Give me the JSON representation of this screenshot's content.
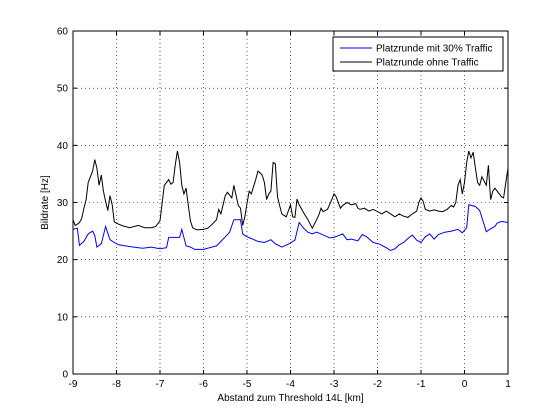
{
  "chart_data": {
    "type": "line",
    "xlabel": "Abstand zum Threshold 14L [km]",
    "ylabel": "Bildrate [Hz]",
    "xlim": [
      -9,
      1
    ],
    "ylim": [
      0,
      60
    ],
    "xticks": [
      -9,
      -8,
      -7,
      -6,
      -5,
      -4,
      -3,
      -2,
      -1,
      0,
      1
    ],
    "yticks": [
      0,
      10,
      20,
      30,
      40,
      50,
      60
    ],
    "grid": true,
    "legend_position": "top-right",
    "series": [
      {
        "name": "Platzrunde mit 30% Traffic",
        "color": "#0000ff",
        "points": [
          [
            -9.0,
            25.3
          ],
          [
            -8.9,
            25.5
          ],
          [
            -8.85,
            22.5
          ],
          [
            -8.75,
            23.2
          ],
          [
            -8.65,
            24.5
          ],
          [
            -8.55,
            25.0
          ],
          [
            -8.5,
            24.2
          ],
          [
            -8.45,
            22.2
          ],
          [
            -8.35,
            22.8
          ],
          [
            -8.25,
            25.8
          ],
          [
            -8.15,
            23.5
          ],
          [
            -8.05,
            23.0
          ],
          [
            -7.95,
            22.6
          ],
          [
            -7.8,
            22.4
          ],
          [
            -7.6,
            22.2
          ],
          [
            -7.4,
            22.0
          ],
          [
            -7.2,
            22.2
          ],
          [
            -7.0,
            21.9
          ],
          [
            -6.85,
            22.1
          ],
          [
            -6.8,
            23.9
          ],
          [
            -6.55,
            23.9
          ],
          [
            -6.5,
            25.3
          ],
          [
            -6.4,
            22.4
          ],
          [
            -6.3,
            22.2
          ],
          [
            -6.2,
            21.8
          ],
          [
            -6.0,
            21.8
          ],
          [
            -5.9,
            22.0
          ],
          [
            -5.7,
            22.4
          ],
          [
            -5.6,
            23.2
          ],
          [
            -5.5,
            24.0
          ],
          [
            -5.4,
            24.8
          ],
          [
            -5.3,
            27.0
          ],
          [
            -5.15,
            27.0
          ],
          [
            -5.1,
            24.5
          ],
          [
            -5.0,
            24.0
          ],
          [
            -4.9,
            23.7
          ],
          [
            -4.75,
            23.2
          ],
          [
            -4.6,
            23.0
          ],
          [
            -4.45,
            23.5
          ],
          [
            -4.35,
            22.8
          ],
          [
            -4.2,
            22.2
          ],
          [
            -4.05,
            22.7
          ],
          [
            -3.9,
            23.4
          ],
          [
            -3.8,
            26.5
          ],
          [
            -3.7,
            25.5
          ],
          [
            -3.6,
            24.8
          ],
          [
            -3.5,
            24.5
          ],
          [
            -3.4,
            24.8
          ],
          [
            -3.3,
            24.5
          ],
          [
            -3.1,
            23.8
          ],
          [
            -3.0,
            23.9
          ],
          [
            -2.9,
            24.2
          ],
          [
            -2.8,
            24.5
          ],
          [
            -2.7,
            23.5
          ],
          [
            -2.6,
            23.6
          ],
          [
            -2.45,
            23.3
          ],
          [
            -2.35,
            24.4
          ],
          [
            -2.25,
            24.0
          ],
          [
            -2.1,
            23.0
          ],
          [
            -1.95,
            22.7
          ],
          [
            -1.8,
            22.1
          ],
          [
            -1.7,
            21.6
          ],
          [
            -1.6,
            21.9
          ],
          [
            -1.5,
            22.6
          ],
          [
            -1.4,
            23.0
          ],
          [
            -1.3,
            23.7
          ],
          [
            -1.2,
            24.3
          ],
          [
            -1.1,
            23.4
          ],
          [
            -1.0,
            23.0
          ],
          [
            -0.9,
            24.0
          ],
          [
            -0.8,
            24.5
          ],
          [
            -0.7,
            23.6
          ],
          [
            -0.6,
            24.4
          ],
          [
            -0.45,
            24.8
          ],
          [
            -0.3,
            25.0
          ],
          [
            -0.15,
            25.3
          ],
          [
            -0.05,
            24.7
          ],
          [
            0.05,
            25.6
          ],
          [
            0.1,
            29.6
          ],
          [
            0.25,
            29.3
          ],
          [
            0.35,
            28.6
          ],
          [
            0.5,
            24.9
          ],
          [
            0.6,
            25.4
          ],
          [
            0.7,
            25.8
          ],
          [
            0.75,
            26.4
          ],
          [
            0.85,
            26.7
          ],
          [
            1.0,
            26.5
          ]
        ]
      },
      {
        "name": "Platzrunde ohne Traffic",
        "color": "#000000",
        "points": [
          [
            -9.0,
            27.0
          ],
          [
            -8.95,
            26.0
          ],
          [
            -8.9,
            26.2
          ],
          [
            -8.85,
            26.5
          ],
          [
            -8.8,
            27.2
          ],
          [
            -8.75,
            29.0
          ],
          [
            -8.7,
            30.5
          ],
          [
            -8.65,
            33.5
          ],
          [
            -8.6,
            34.5
          ],
          [
            -8.55,
            35.5
          ],
          [
            -8.5,
            37.5
          ],
          [
            -8.45,
            36.0
          ],
          [
            -8.4,
            33.0
          ],
          [
            -8.35,
            34.8
          ],
          [
            -8.3,
            32.0
          ],
          [
            -8.25,
            30.2
          ],
          [
            -8.2,
            28.6
          ],
          [
            -8.15,
            31.2
          ],
          [
            -8.1,
            29.6
          ],
          [
            -8.05,
            26.6
          ],
          [
            -7.95,
            26.2
          ],
          [
            -7.85,
            25.9
          ],
          [
            -7.7,
            25.6
          ],
          [
            -7.5,
            26.0
          ],
          [
            -7.35,
            25.6
          ],
          [
            -7.2,
            25.6
          ],
          [
            -7.1,
            25.8
          ],
          [
            -7.0,
            26.8
          ],
          [
            -6.95,
            30.0
          ],
          [
            -6.9,
            33.0
          ],
          [
            -6.8,
            34.0
          ],
          [
            -6.75,
            33.2
          ],
          [
            -6.7,
            33.5
          ],
          [
            -6.65,
            36.5
          ],
          [
            -6.6,
            39.0
          ],
          [
            -6.55,
            37.0
          ],
          [
            -6.5,
            33.0
          ],
          [
            -6.45,
            31.5
          ],
          [
            -6.4,
            32.5
          ],
          [
            -6.35,
            29.5
          ],
          [
            -6.3,
            26.8
          ],
          [
            -6.25,
            25.6
          ],
          [
            -6.15,
            25.2
          ],
          [
            -6.0,
            25.3
          ],
          [
            -5.9,
            25.5
          ],
          [
            -5.8,
            26.2
          ],
          [
            -5.7,
            27.0
          ],
          [
            -5.65,
            28.8
          ],
          [
            -5.6,
            28.0
          ],
          [
            -5.5,
            31.2
          ],
          [
            -5.45,
            31.8
          ],
          [
            -5.35,
            30.8
          ],
          [
            -5.3,
            33.0
          ],
          [
            -5.25,
            31.2
          ],
          [
            -5.2,
            29.5
          ],
          [
            -5.15,
            29.0
          ],
          [
            -5.1,
            26.0
          ],
          [
            -5.05,
            27.5
          ],
          [
            -5.0,
            29.8
          ],
          [
            -4.95,
            32.0
          ],
          [
            -4.9,
            31.5
          ],
          [
            -4.8,
            34.0
          ],
          [
            -4.75,
            35.5
          ],
          [
            -4.7,
            35.2
          ],
          [
            -4.65,
            34.8
          ],
          [
            -4.6,
            33.5
          ],
          [
            -4.55,
            30.5
          ],
          [
            -4.5,
            31.5
          ],
          [
            -4.45,
            32.0
          ],
          [
            -4.4,
            37.0
          ],
          [
            -4.35,
            36.8
          ],
          [
            -4.3,
            31.0
          ],
          [
            -4.25,
            29.5
          ],
          [
            -4.2,
            28.0
          ],
          [
            -4.1,
            27.5
          ],
          [
            -4.05,
            28.5
          ],
          [
            -4.0,
            29.6
          ],
          [
            -3.95,
            27.5
          ],
          [
            -3.9,
            27.4
          ],
          [
            -3.85,
            30.6
          ],
          [
            -3.8,
            29.6
          ],
          [
            -3.7,
            28.2
          ],
          [
            -3.6,
            27.0
          ],
          [
            -3.5,
            25.5
          ],
          [
            -3.4,
            27.0
          ],
          [
            -3.35,
            27.8
          ],
          [
            -3.3,
            29.0
          ],
          [
            -3.25,
            28.4
          ],
          [
            -3.15,
            28.8
          ],
          [
            -3.05,
            30.5
          ],
          [
            -3.0,
            31.5
          ],
          [
            -2.95,
            31.0
          ],
          [
            -2.9,
            30.0
          ],
          [
            -2.85,
            29.0
          ],
          [
            -2.8,
            29.5
          ],
          [
            -2.7,
            30.0
          ],
          [
            -2.6,
            29.6
          ],
          [
            -2.5,
            29.8
          ],
          [
            -2.45,
            29.0
          ],
          [
            -2.4,
            28.8
          ],
          [
            -2.3,
            29.0
          ],
          [
            -2.2,
            28.5
          ],
          [
            -2.1,
            28.8
          ],
          [
            -2.0,
            28.4
          ],
          [
            -1.9,
            28.0
          ],
          [
            -1.8,
            28.5
          ],
          [
            -1.7,
            28.0
          ],
          [
            -1.6,
            27.5
          ],
          [
            -1.5,
            28.0
          ],
          [
            -1.4,
            27.6
          ],
          [
            -1.3,
            27.4
          ],
          [
            -1.2,
            28.0
          ],
          [
            -1.1,
            28.5
          ],
          [
            -1.05,
            30.0
          ],
          [
            -1.0,
            30.8
          ],
          [
            -0.95,
            30.2
          ],
          [
            -0.9,
            28.8
          ],
          [
            -0.8,
            28.5
          ],
          [
            -0.7,
            28.7
          ],
          [
            -0.6,
            28.5
          ],
          [
            -0.5,
            28.4
          ],
          [
            -0.4,
            28.8
          ],
          [
            -0.3,
            29.5
          ],
          [
            -0.25,
            29.2
          ],
          [
            -0.2,
            30.0
          ],
          [
            -0.15,
            33.0
          ],
          [
            -0.1,
            34.0
          ],
          [
            -0.05,
            31.5
          ],
          [
            0.0,
            33.5
          ],
          [
            0.05,
            37.0
          ],
          [
            0.1,
            39.0
          ],
          [
            0.15,
            37.8
          ],
          [
            0.2,
            38.8
          ],
          [
            0.25,
            36.0
          ],
          [
            0.3,
            33.5
          ],
          [
            0.35,
            33.0
          ],
          [
            0.4,
            34.5
          ],
          [
            0.5,
            33.0
          ],
          [
            0.55,
            36.5
          ],
          [
            0.6,
            30.5
          ],
          [
            0.65,
            32.0
          ],
          [
            0.7,
            32.5
          ],
          [
            0.8,
            31.5
          ],
          [
            0.85,
            31.0
          ],
          [
            0.9,
            30.8
          ],
          [
            0.95,
            33.5
          ],
          [
            1.0,
            36.0
          ]
        ]
      }
    ]
  }
}
